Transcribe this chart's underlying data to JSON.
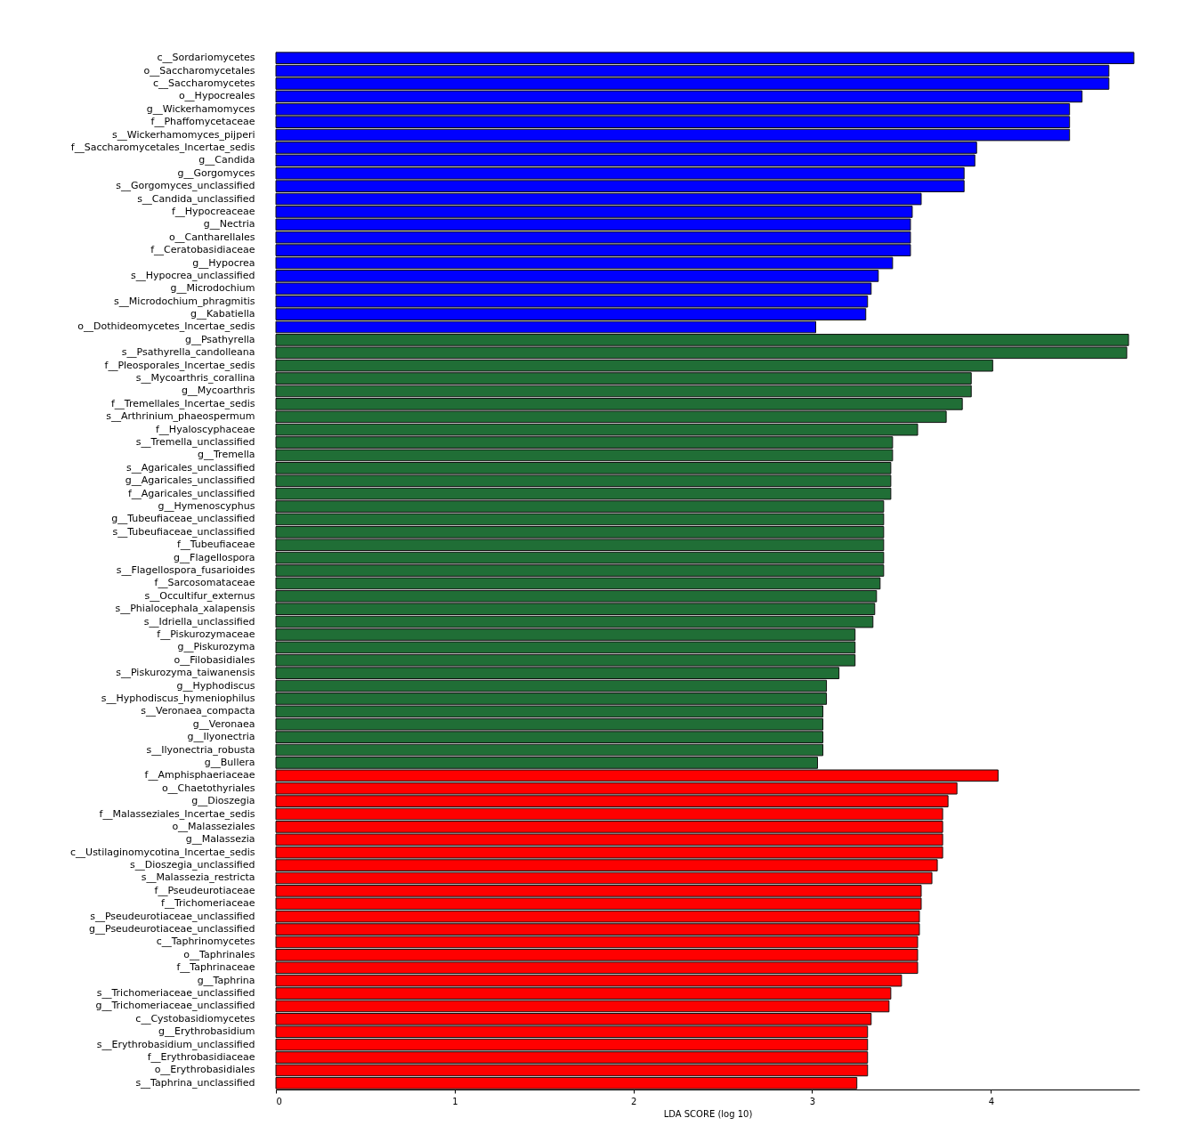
{
  "chart_data": {
    "type": "bar",
    "orientation": "horizontal",
    "xlabel": "LDA SCORE (log 10)",
    "xlim": [
      0,
      4.83
    ],
    "xticks": [
      0,
      1,
      2,
      3,
      4
    ],
    "grid": false,
    "categories": [
      "c__Sordariomycetes",
      "o__Saccharomycetales",
      "c__Saccharomycetes",
      "o__Hypocreales",
      "g__Wickerhamomyces",
      "f__Phaffomycetaceae",
      "s__Wickerhamomyces_pijperi",
      "f__Saccharomycetales_Incertae_sedis",
      "g__Candida",
      "g__Gorgomyces",
      "s__Gorgomyces_unclassified",
      "s__Candida_unclassified",
      "f__Hypocreaceae",
      "g__Nectria",
      "o__Cantharellales",
      "f__Ceratobasidiaceae",
      "g__Hypocrea",
      "s__Hypocrea_unclassified",
      "g__Microdochium",
      "s__Microdochium_phragmitis",
      "g__Kabatiella",
      "o__Dothideomycetes_Incertae_sedis",
      "g__Psathyrella",
      "s__Psathyrella_candolleana",
      "f__Pleosporales_Incertae_sedis",
      "s__Mycoarthris_corallina",
      "g__Mycoarthris",
      "f__Tremellales_Incertae_sedis",
      "s__Arthrinium_phaeospermum",
      "f__Hyaloscyphaceae",
      "s__Tremella_unclassified",
      "g__Tremella",
      "s__Agaricales_unclassified",
      "g__Agaricales_unclassified",
      "f__Agaricales_unclassified",
      "g__Hymenoscyphus",
      "g__Tubeufiaceae_unclassified",
      "s__Tubeufiaceae_unclassified",
      "f__Tubeufiaceae",
      "g__Flagellospora",
      "s__Flagellospora_fusarioides",
      "f__Sarcosomataceae",
      "s__Occultifur_externus",
      "s__Phialocephala_xalapensis",
      "s__Idriella_unclassified",
      "f__Piskurozymaceae",
      "g__Piskurozyma",
      "o__Filobasidiales",
      "s__Piskurozyma_taiwanensis",
      "g__Hyphodiscus",
      "s__Hyphodiscus_hymeniophilus",
      "s__Veronaea_compacta",
      "g__Veronaea",
      "g__Ilyonectria",
      "s__Ilyonectria_robusta",
      "g__Bullera",
      "f__Amphisphaeriaceae",
      "o__Chaetothyriales",
      "g__Dioszegia",
      "f__Malasseziales_Incertae_sedis",
      "o__Malasseziales",
      "g__Malassezia",
      "c__Ustilaginomycotina_Incertae_sedis",
      "s__Dioszegia_unclassified",
      "s__Malassezia_restricta",
      "f__Pseudeurotiaceae",
      "f__Trichomeriaceae",
      "s__Pseudeurotiaceae_unclassified",
      "g__Pseudeurotiaceae_unclassified",
      "c__Taphrinomycetes",
      "o__Taphrinales",
      "f__Taphrinaceae",
      "g__Taphrina",
      "s__Trichomeriaceae_unclassified",
      "g__Trichomeriaceae_unclassified",
      "c__Cystobasidiomycetes",
      "g__Erythrobasidium",
      "s__Erythrobasidium_unclassified",
      "f__Erythrobasidiaceae",
      "o__Erythrobasidiales",
      "s__Taphrina_unclassified"
    ],
    "values": [
      4.8,
      4.66,
      4.66,
      4.51,
      4.44,
      4.44,
      4.44,
      3.92,
      3.91,
      3.85,
      3.85,
      3.61,
      3.56,
      3.55,
      3.55,
      3.55,
      3.45,
      3.37,
      3.33,
      3.31,
      3.3,
      3.02,
      4.77,
      4.76,
      4.01,
      3.89,
      3.89,
      3.84,
      3.75,
      3.59,
      3.45,
      3.45,
      3.44,
      3.44,
      3.44,
      3.4,
      3.4,
      3.4,
      3.4,
      3.4,
      3.4,
      3.38,
      3.36,
      3.35,
      3.34,
      3.24,
      3.24,
      3.24,
      3.15,
      3.08,
      3.08,
      3.06,
      3.06,
      3.06,
      3.06,
      3.03,
      4.04,
      3.81,
      3.76,
      3.73,
      3.73,
      3.73,
      3.73,
      3.7,
      3.67,
      3.61,
      3.61,
      3.6,
      3.6,
      3.59,
      3.59,
      3.59,
      3.5,
      3.44,
      3.43,
      3.33,
      3.31,
      3.31,
      3.31,
      3.31,
      3.25
    ],
    "colors": [
      "#0000ff",
      "#0000ff",
      "#0000ff",
      "#0000ff",
      "#0000ff",
      "#0000ff",
      "#0000ff",
      "#0000ff",
      "#0000ff",
      "#0000ff",
      "#0000ff",
      "#0000ff",
      "#0000ff",
      "#0000ff",
      "#0000ff",
      "#0000ff",
      "#0000ff",
      "#0000ff",
      "#0000ff",
      "#0000ff",
      "#0000ff",
      "#0000ff",
      "#206e36",
      "#206e36",
      "#206e36",
      "#206e36",
      "#206e36",
      "#206e36",
      "#206e36",
      "#206e36",
      "#206e36",
      "#206e36",
      "#206e36",
      "#206e36",
      "#206e36",
      "#206e36",
      "#206e36",
      "#206e36",
      "#206e36",
      "#206e36",
      "#206e36",
      "#206e36",
      "#206e36",
      "#206e36",
      "#206e36",
      "#206e36",
      "#206e36",
      "#206e36",
      "#206e36",
      "#206e36",
      "#206e36",
      "#206e36",
      "#206e36",
      "#206e36",
      "#206e36",
      "#206e36",
      "#ff0000",
      "#ff0000",
      "#ff0000",
      "#ff0000",
      "#ff0000",
      "#ff0000",
      "#ff0000",
      "#ff0000",
      "#ff0000",
      "#ff0000",
      "#ff0000",
      "#ff0000",
      "#ff0000",
      "#ff0000",
      "#ff0000",
      "#ff0000",
      "#ff0000",
      "#ff0000",
      "#ff0000",
      "#ff0000",
      "#ff0000",
      "#ff0000",
      "#ff0000",
      "#ff0000",
      "#ff0000"
    ]
  }
}
